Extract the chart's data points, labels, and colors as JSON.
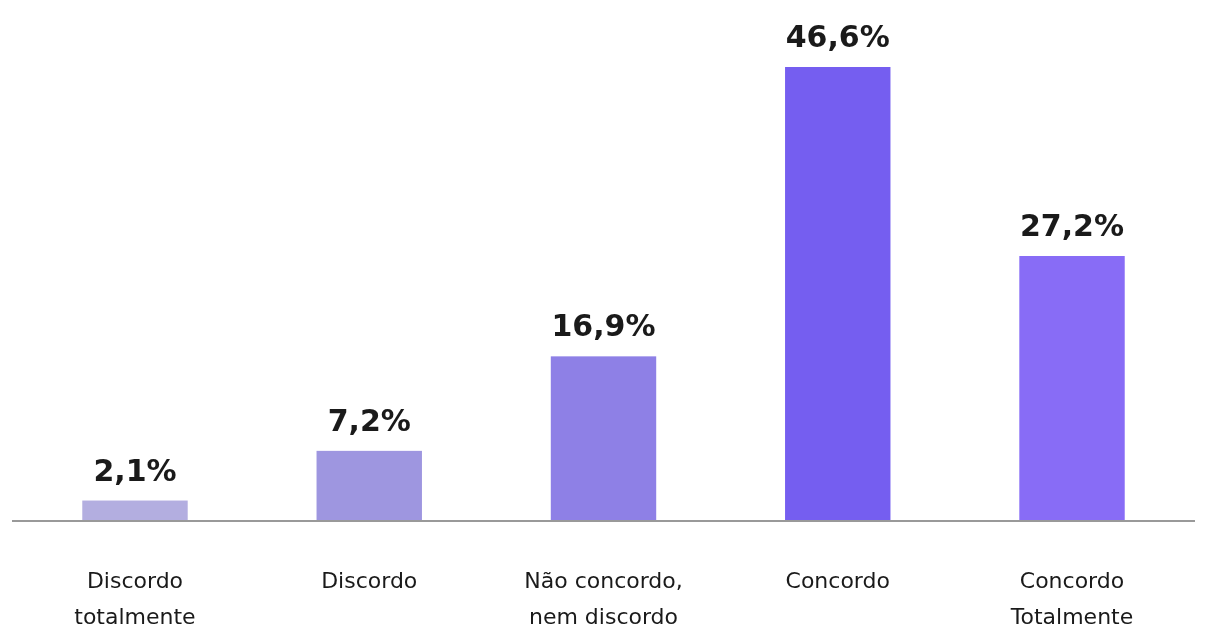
{
  "chart_data": {
    "type": "bar",
    "categories": [
      "Discordo totalmente",
      "Discordo",
      "Não concordo, nem discordo",
      "Concordo",
      "Concordo Totalmente"
    ],
    "values": [
      2.1,
      7.2,
      16.9,
      46.6,
      27.2
    ],
    "colors": [
      "#b3aee0",
      "#9e96e0",
      "#8e80e6",
      "#755ef0",
      "#886cf6"
    ],
    "value_labels": [
      "2,1%",
      "7,2%",
      "16,9%",
      "46,6%",
      "27,2%"
    ]
  }
}
